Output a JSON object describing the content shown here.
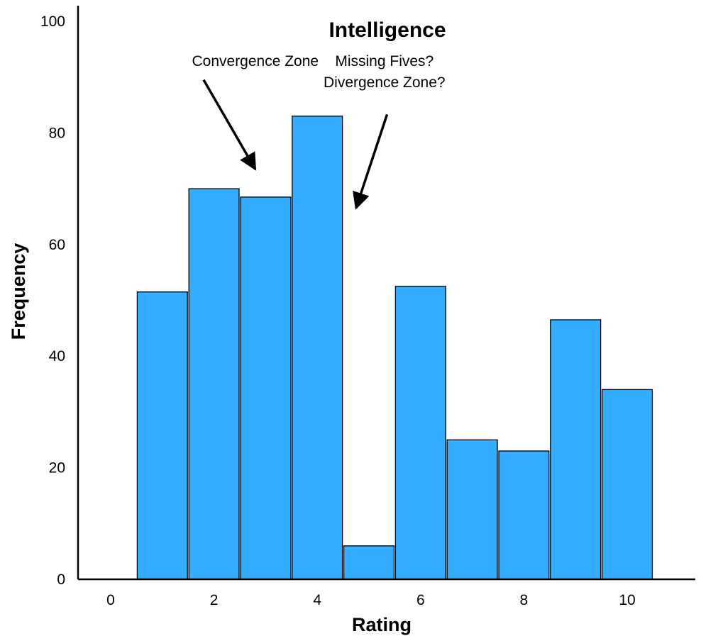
{
  "chart_data": {
    "type": "bar",
    "title": "Intelligence",
    "xlabel": "Rating",
    "ylabel": "Frequency",
    "categories": [
      1,
      2,
      3,
      4,
      5,
      6,
      7,
      8,
      9,
      10
    ],
    "values": [
      51.5,
      70,
      68.5,
      83,
      6,
      52.5,
      25,
      23,
      46.5,
      34
    ],
    "x_ticks": [
      0,
      2,
      4,
      6,
      8,
      10
    ],
    "y_ticks": [
      0,
      20,
      40,
      60,
      80,
      100
    ],
    "xlim": [
      -0.6,
      11.2
    ],
    "ylim": [
      0,
      100
    ],
    "grid": false,
    "bar_color": "#33adff",
    "annotations": [
      {
        "lines": [
          "Convergence Zone"
        ],
        "text_x": 2.8,
        "text_y": 92,
        "arrow_from": [
          1.8,
          89.5
        ],
        "arrow_to": [
          2.8,
          73.5
        ]
      },
      {
        "lines": [
          "Missing Fives?",
          "Divergence Zone?"
        ],
        "text_x": 5.3,
        "text_y": 92,
        "arrow_from": [
          5.35,
          83.3
        ],
        "arrow_to": [
          4.75,
          66.5
        ]
      }
    ]
  }
}
